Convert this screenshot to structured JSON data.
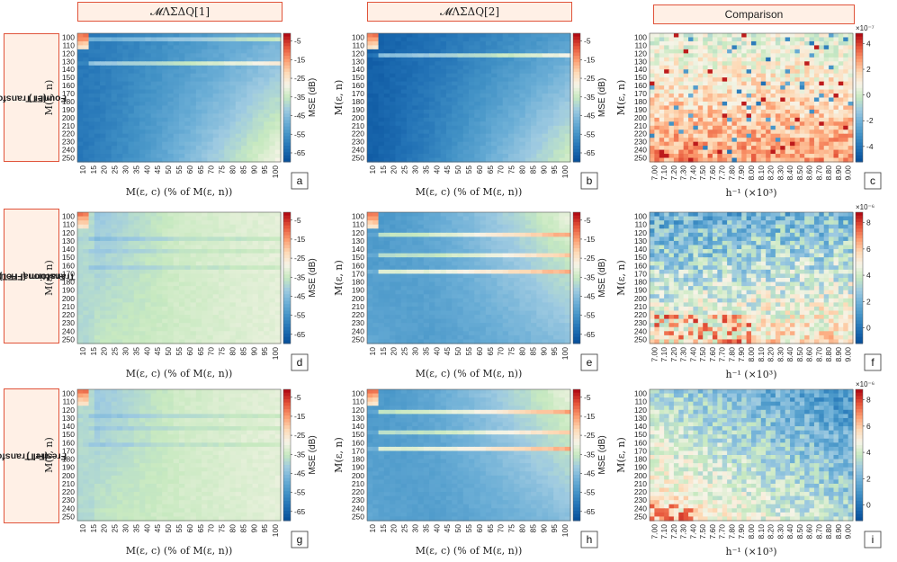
{
  "header": {
    "col1": "𝓜ΛΣΔQ[1]",
    "col2": "𝓜ΛΣΔQ[2]",
    "col3": "Comparison"
  },
  "rows": [
    {
      "label_line1": "Fourier Transform",
      "label_line2": "(FT)",
      "label_line3": ""
    },
    {
      "label_line1": "Fractional Fourier",
      "label_line2": "Transform (FrFT)",
      "label_line3": ""
    },
    {
      "label_line1": "Fresnel Transform",
      "label_line2": "(FrT)",
      "label_line3": ""
    }
  ],
  "colors": {
    "border": "#e0533a",
    "header_bg": "#fff0e6",
    "cmap": [
      "#08519c",
      "#2171b5",
      "#4292c6",
      "#6baed6",
      "#9ecae1",
      "#c7e9c0",
      "#f7f4e8",
      "#fdd9b5",
      "#fc9c6f",
      "#e6553a",
      "#b30c14"
    ]
  },
  "chart_data": [
    {
      "id": "a",
      "type": "heatmap",
      "method": "MLSDQ[1]",
      "transform": "FT",
      "y_label": "M(ε, n)",
      "x_label": "M(ε, c) (% of M(ε, n))",
      "x_ticks": [
        "10",
        "15",
        "20",
        "25",
        "30",
        "35",
        "40",
        "45",
        "50",
        "55",
        "60",
        "65",
        "70",
        "75",
        "80",
        "85",
        "90",
        "95",
        "100"
      ],
      "y_ticks": [
        "100",
        "110",
        "120",
        "130",
        "140",
        "150",
        "160",
        "170",
        "180",
        "190",
        "200",
        "210",
        "220",
        "230",
        "240",
        "250"
      ],
      "colorbar": {
        "label": "MSE (dB)",
        "ticks": [
          "-5",
          "-15",
          "-25",
          "-35",
          "-45",
          "-55",
          "-65"
        ],
        "range": [
          -65,
          0
        ]
      },
      "bands": [
        {
          "row": "105",
          "strength": 0.25
        },
        {
          "row": "135",
          "strength": 0.35
        }
      ],
      "base_level": -58,
      "upper_right_level": -42
    },
    {
      "id": "b",
      "type": "heatmap",
      "method": "MLSDQ[2]",
      "transform": "FT",
      "y_label": "M(ε, n)",
      "x_label": "M(ε, c) (% of M(ε, n))",
      "x_ticks": [
        "10",
        "15",
        "20",
        "25",
        "30",
        "35",
        "40",
        "45",
        "50",
        "55",
        "60",
        "65",
        "70",
        "75",
        "80",
        "85",
        "90",
        "95",
        "100"
      ],
      "y_ticks": [
        "100",
        "110",
        "120",
        "130",
        "140",
        "150",
        "160",
        "170",
        "180",
        "190",
        "200",
        "210",
        "220",
        "230",
        "240",
        "250"
      ],
      "colorbar": {
        "label": "MSE (dB)",
        "ticks": [
          "-5",
          "-15",
          "-25",
          "-35",
          "-45",
          "-55",
          "-65"
        ],
        "range": [
          -65,
          0
        ]
      },
      "bands": [
        {
          "row": "125",
          "strength": 0.3
        }
      ],
      "base_level": -62,
      "upper_right_level": -45
    },
    {
      "id": "c",
      "type": "heatmap",
      "method": "Comparison",
      "transform": "FT",
      "y_label": "M(ε, n)",
      "x_label": "h⁻¹ (×10³)",
      "x_ticks": [
        "7.00",
        "7.10",
        "7.20",
        "7.30",
        "7.40",
        "7.50",
        "7.60",
        "7.70",
        "7.80",
        "7.90",
        "8.00",
        "8.10",
        "8.20",
        "8.30",
        "8.40",
        "8.50",
        "8.60",
        "8.70",
        "8.80",
        "8.90",
        "9.00"
      ],
      "y_ticks": [
        "100",
        "110",
        "120",
        "130",
        "140",
        "150",
        "160",
        "170",
        "180",
        "190",
        "200",
        "210",
        "220",
        "230",
        "240",
        "250"
      ],
      "colorbar": {
        "label": "",
        "exponent": "×10⁻⁷",
        "ticks": [
          "4",
          "2",
          "0",
          "-2",
          "-4"
        ],
        "range": [
          -5,
          5
        ]
      }
    },
    {
      "id": "d",
      "type": "heatmap",
      "method": "MLSDQ[1]",
      "transform": "FrFT",
      "y_label": "M(ε, n)",
      "x_label": "M(ε, c) (% of M(ε, n))",
      "x_ticks": [
        "10",
        "15",
        "20",
        "25",
        "30",
        "35",
        "40",
        "45",
        "50",
        "55",
        "60",
        "65",
        "70",
        "75",
        "80",
        "85",
        "90",
        "95",
        "100"
      ],
      "y_ticks": [
        "100",
        "110",
        "120",
        "130",
        "140",
        "150",
        "160",
        "170",
        "180",
        "190",
        "200",
        "210",
        "220",
        "230",
        "240",
        "250"
      ],
      "colorbar": {
        "label": "MSE (dB)",
        "ticks": [
          "-5",
          "-15",
          "-25",
          "-35",
          "-45",
          "-55",
          "-65"
        ],
        "range": [
          -65,
          0
        ]
      }
    },
    {
      "id": "e",
      "type": "heatmap",
      "method": "MLSDQ[2]",
      "transform": "FrFT",
      "y_label": "M(ε, n)",
      "x_label": "M(ε, c) (% of M(ε, n))",
      "x_ticks": [
        "10",
        "15",
        "20",
        "25",
        "30",
        "35",
        "40",
        "45",
        "50",
        "55",
        "60",
        "65",
        "70",
        "75",
        "80",
        "85",
        "90",
        "95",
        "100"
      ],
      "y_ticks": [
        "100",
        "110",
        "120",
        "130",
        "140",
        "150",
        "160",
        "170",
        "180",
        "190",
        "200",
        "210",
        "220",
        "230",
        "240",
        "250"
      ],
      "colorbar": {
        "label": "MSE (dB)",
        "ticks": [
          "-5",
          "-15",
          "-25",
          "-35",
          "-45",
          "-55",
          "-65"
        ],
        "range": [
          -65,
          0
        ]
      }
    },
    {
      "id": "f",
      "type": "heatmap",
      "method": "Comparison",
      "transform": "FrFT",
      "y_label": "M(ε, n)",
      "x_label": "h⁻¹ (×10³)",
      "x_ticks": [
        "7.00",
        "7.10",
        "7.20",
        "7.30",
        "7.40",
        "7.50",
        "7.60",
        "7.70",
        "7.80",
        "7.90",
        "8.00",
        "8.10",
        "8.20",
        "8.30",
        "8.40",
        "8.50",
        "8.60",
        "8.70",
        "8.80",
        "8.90",
        "9.00"
      ],
      "y_ticks": [
        "100",
        "110",
        "120",
        "130",
        "140",
        "150",
        "160",
        "170",
        "180",
        "190",
        "200",
        "210",
        "220",
        "230",
        "240",
        "250"
      ],
      "colorbar": {
        "label": "",
        "exponent": "×10⁻⁶",
        "ticks": [
          "8",
          "6",
          "4",
          "2",
          "0"
        ],
        "range": [
          0,
          8
        ]
      }
    },
    {
      "id": "g",
      "type": "heatmap",
      "method": "MLSDQ[1]",
      "transform": "FrT",
      "y_label": "M(ε, n)",
      "x_label": "M(ε, c) (% of M(ε, n))",
      "x_ticks": [
        "10",
        "15",
        "20",
        "25",
        "30",
        "35",
        "40",
        "45",
        "50",
        "55",
        "60",
        "65",
        "70",
        "75",
        "80",
        "85",
        "90",
        "95",
        "100"
      ],
      "y_ticks": [
        "100",
        "110",
        "120",
        "130",
        "140",
        "150",
        "160",
        "170",
        "180",
        "190",
        "200",
        "210",
        "220",
        "230",
        "240",
        "250"
      ],
      "colorbar": {
        "label": "MSE (dB)",
        "ticks": [
          "-5",
          "-15",
          "-25",
          "-35",
          "-45",
          "-55",
          "-65"
        ],
        "range": [
          -65,
          0
        ]
      }
    },
    {
      "id": "h",
      "type": "heatmap",
      "method": "MLSDQ[2]",
      "transform": "FrT",
      "y_label": "M(ε, n)",
      "x_label": "M(ε, c) (% of M(ε, n))",
      "x_ticks": [
        "10",
        "15",
        "20",
        "25",
        "30",
        "35",
        "40",
        "45",
        "50",
        "55",
        "60",
        "65",
        "70",
        "75",
        "80",
        "85",
        "90",
        "95",
        "100"
      ],
      "y_ticks": [
        "100",
        "110",
        "120",
        "130",
        "140",
        "150",
        "160",
        "170",
        "180",
        "190",
        "200",
        "210",
        "220",
        "230",
        "240",
        "250"
      ],
      "colorbar": {
        "label": "MSE (dB)",
        "ticks": [
          "-5",
          "-15",
          "-25",
          "-35",
          "-45",
          "-55",
          "-65"
        ],
        "range": [
          -65,
          0
        ]
      }
    },
    {
      "id": "i",
      "type": "heatmap",
      "method": "Comparison",
      "transform": "FrT",
      "y_label": "M(ε, n)",
      "x_label": "h⁻¹ (×10³)",
      "x_ticks": [
        "7.00",
        "7.10",
        "7.20",
        "7.30",
        "7.40",
        "7.50",
        "7.60",
        "7.70",
        "7.80",
        "7.90",
        "8.00",
        "8.10",
        "8.20",
        "8.30",
        "8.40",
        "8.50",
        "8.60",
        "8.70",
        "8.80",
        "8.90",
        "9.00"
      ],
      "y_ticks": [
        "100",
        "110",
        "120",
        "130",
        "140",
        "150",
        "160",
        "170",
        "180",
        "190",
        "200",
        "210",
        "220",
        "230",
        "240",
        "250"
      ],
      "colorbar": {
        "label": "",
        "exponent": "×10⁻⁶",
        "ticks": [
          "8",
          "6",
          "4",
          "2",
          "0"
        ],
        "range": [
          0,
          9
        ]
      }
    }
  ]
}
